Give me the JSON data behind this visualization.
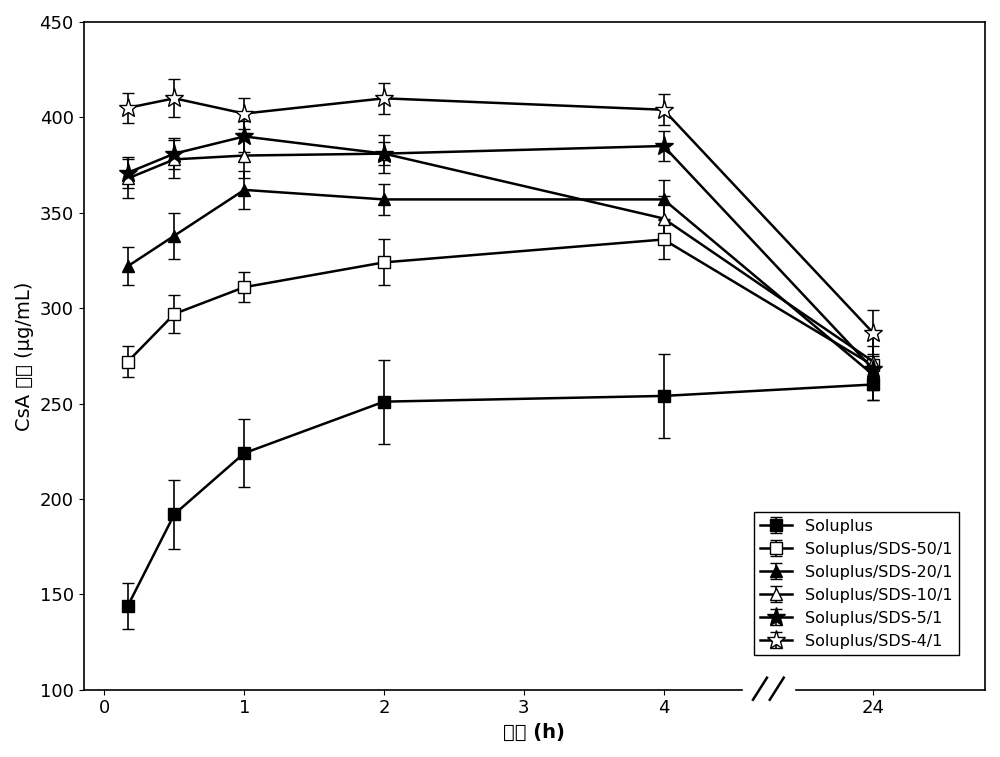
{
  "x_display": [
    0.167,
    0.5,
    1,
    2,
    4,
    5.5
  ],
  "x_ticks_pos": [
    0,
    1,
    2,
    3,
    4,
    5.5
  ],
  "x_ticks_labels": [
    "0",
    "1",
    "2",
    "3",
    "4",
    "24"
  ],
  "series": [
    {
      "name": "Soluplus",
      "y": [
        144,
        192,
        224,
        251,
        254,
        260
      ],
      "yerr": [
        12,
        18,
        18,
        22,
        22,
        8
      ],
      "marker": "s",
      "mfc": "#000000",
      "ms": 8
    },
    {
      "name": "Soluplus/SDS-50/1",
      "y": [
        272,
        297,
        311,
        324,
        336,
        270
      ],
      "yerr": [
        8,
        10,
        8,
        12,
        10,
        18
      ],
      "marker": "s",
      "mfc": "#ffffff",
      "ms": 8
    },
    {
      "name": "Soluplus/SDS-20/1",
      "y": [
        322,
        338,
        362,
        357,
        357,
        265
      ],
      "yerr": [
        10,
        12,
        10,
        8,
        10,
        8
      ],
      "marker": "^",
      "mfc": "#000000",
      "ms": 9
    },
    {
      "name": "Soluplus/SDS-10/1",
      "y": [
        368,
        378,
        380,
        381,
        347,
        272
      ],
      "yerr": [
        10,
        10,
        12,
        10,
        12,
        8
      ],
      "marker": "^",
      "mfc": "#ffffff",
      "ms": 9
    },
    {
      "name": "Soluplus/SDS-5/1",
      "y": [
        371,
        381,
        390,
        381,
        385,
        268
      ],
      "yerr": [
        8,
        8,
        8,
        6,
        8,
        8
      ],
      "marker": "*",
      "mfc": "#000000",
      "ms": 14
    },
    {
      "name": "Soluplus/SDS-4/1",
      "y": [
        405,
        410,
        402,
        410,
        404,
        287
      ],
      "yerr": [
        8,
        10,
        8,
        8,
        8,
        12
      ],
      "marker": "*",
      "mfc": "#ffffff",
      "ms": 14
    }
  ],
  "ylabel": "CsA 浓度 (μg/mL)",
  "xlabel": "时间 (h)",
  "ylim": [
    100,
    450
  ],
  "yticks": [
    100,
    150,
    200,
    250,
    300,
    350,
    400,
    450
  ],
  "xlim": [
    -0.15,
    6.3
  ],
  "break_x": 4.75,
  "background_color": "#ffffff"
}
